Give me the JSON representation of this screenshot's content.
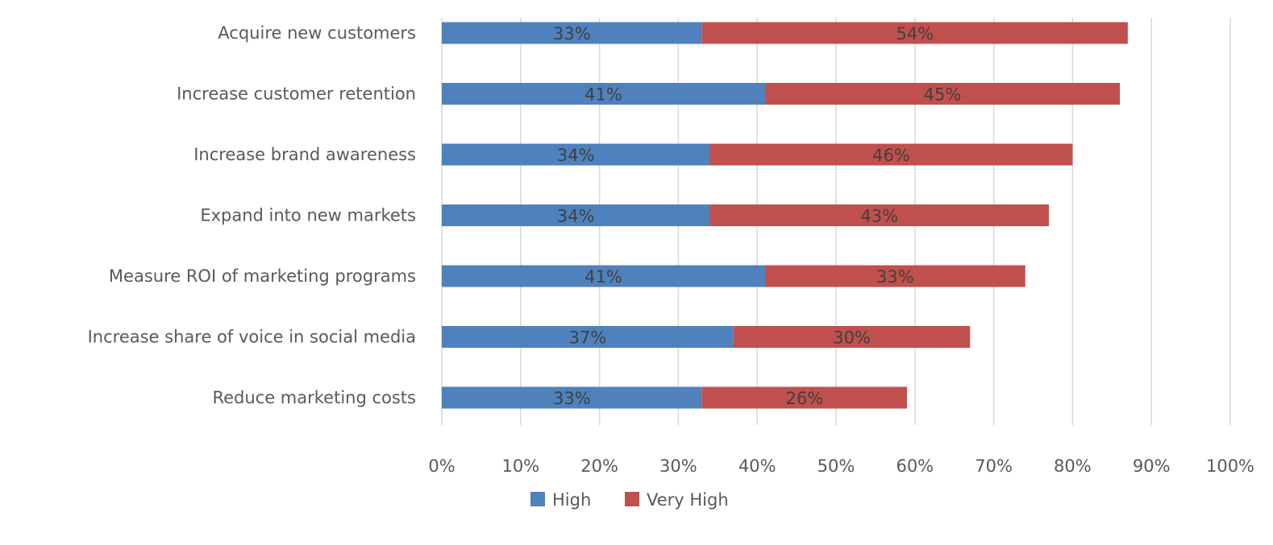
{
  "chart_data": {
    "type": "bar",
    "orientation": "horizontal",
    "stacked": true,
    "categories": [
      "Acquire new customers",
      "Increase customer retention",
      "Increase brand awareness",
      "Expand into new markets",
      "Measure ROI of marketing programs",
      "Increase share of voice in social media",
      "Reduce marketing costs"
    ],
    "series": [
      {
        "name": "High",
        "color": "#4f81bd",
        "values": [
          33,
          41,
          34,
          34,
          41,
          37,
          33
        ],
        "labels": [
          "33%",
          "41%",
          "34%",
          "34%",
          "41%",
          "37%",
          "33%"
        ]
      },
      {
        "name": "Very High",
        "color": "#c0504d",
        "values": [
          54,
          45,
          46,
          43,
          33,
          30,
          26
        ],
        "labels": [
          "54%",
          "45%",
          "46%",
          "43%",
          "33%",
          "30%",
          "26%"
        ]
      }
    ],
    "xlim": [
      0,
      100
    ],
    "x_ticks": [
      0,
      10,
      20,
      30,
      40,
      50,
      60,
      70,
      80,
      90,
      100
    ],
    "x_tick_labels": [
      "0%",
      "10%",
      "20%",
      "30%",
      "40%",
      "50%",
      "60%",
      "70%",
      "80%",
      "90%",
      "100%"
    ],
    "title": "",
    "xlabel": "",
    "ylabel": "",
    "grid": "vertical",
    "legend_position": "bottom"
  }
}
